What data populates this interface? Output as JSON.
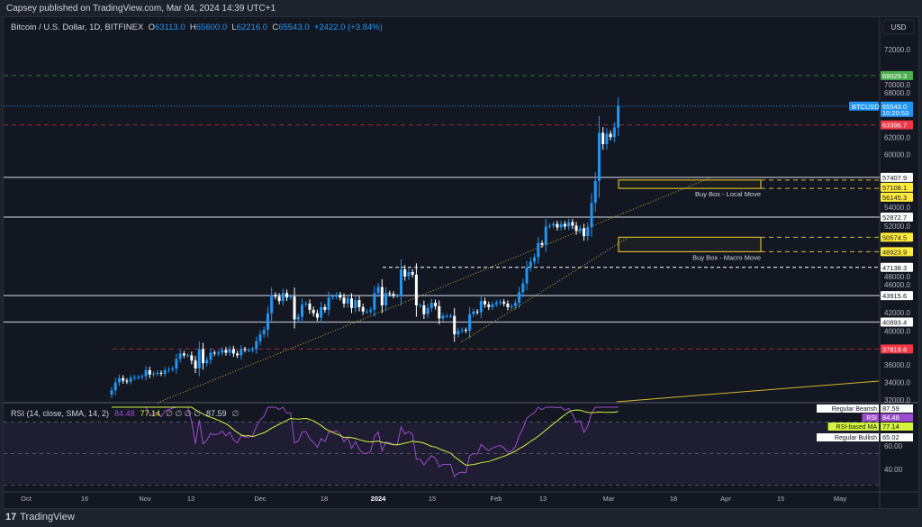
{
  "publisher": "Capsey published on TradingView.com, Mar 04, 2024 14:39 UTC+1",
  "legend": {
    "symbol": "Bitcoin / U.S. Dollar, 1D, BITFINEX",
    "o_label": "O",
    "o": "63113.0",
    "h_label": "H",
    "h": "65600.0",
    "l_label": "L",
    "l": "62216.0",
    "c_label": "C",
    "c": "65543.0",
    "change": "+2422.0 (+3.84%)"
  },
  "currency": "USD",
  "rsi_legend": {
    "label": "RSI (14, close, SMA, 14, 2)",
    "rsi": "84.48",
    "ma": "77.14",
    "na": "∅ ∅ ∅ ∅",
    "bearish": "87.59",
    "na2": "∅"
  },
  "footer": "TradingView",
  "chart_data": {
    "type": "candlestick",
    "symbol": "BTCUSD",
    "interval": "1D",
    "start_date": "2023-10-23",
    "ylim": [
      31500,
      73500
    ],
    "y_ticks": [
      "72000.0",
      "70000.0",
      "68000.0",
      "62000.0",
      "60000.0",
      "54000.0",
      "52000.0",
      "48000.0",
      "46000.0",
      "42000.0",
      "40000.0",
      "36000.0",
      "34000.0",
      "32000.0"
    ],
    "x_ticks": [
      "Oct",
      "16",
      "Nov",
      "13",
      "Dec",
      "18",
      "2024",
      "15",
      "Feb",
      "13",
      "Mar",
      "18",
      "Apr",
      "15",
      "May"
    ],
    "closes": [
      33100,
      34000,
      34500,
      34200,
      34100,
      34500,
      34600,
      34600,
      34700,
      35400,
      34900,
      35000,
      35100,
      35000,
      35400,
      35500,
      35600,
      36700,
      37300,
      37100,
      37100,
      36500,
      35600,
      37800,
      36200,
      36600,
      37400,
      37300,
      37400,
      37700,
      37400,
      37800,
      37300,
      37100,
      37800,
      37700,
      37700,
      37800,
      38700,
      39500,
      40000,
      41900,
      44000,
      43800,
      43300,
      44200,
      43700,
      43800,
      41200,
      41500,
      42900,
      43000,
      42300,
      41900,
      41400,
      42600,
      42300,
      43700,
      43800,
      44000,
      43700,
      43000,
      43600,
      42500,
      43400,
      42600,
      42100,
      42100,
      42300,
      44200,
      44900,
      42800,
      44200,
      44100,
      43900,
      43900,
      46900,
      46100,
      46600,
      46300,
      42800,
      42800,
      41800,
      42500,
      43100,
      42700,
      41300,
      41600,
      41600,
      41600,
      39500,
      39900,
      40000,
      39900,
      41800,
      42100,
      42000,
      43300,
      42900,
      42600,
      42900,
      43100,
      43200,
      43000,
      42600,
      42700,
      43100,
      44300,
      45300,
      47100,
      47800,
      48300,
      49900,
      49700,
      51800,
      51900,
      52100,
      51700,
      52100,
      51800,
      52300,
      51900,
      51300,
      51600,
      50700,
      51700,
      54500,
      57000,
      62500,
      61200,
      62400,
      62000,
      63100,
      65543
    ],
    "levels": [
      {
        "price": 69029.3,
        "label": "69029.3",
        "color": "#4caf50",
        "style": "dashed"
      },
      {
        "price": 65543.0,
        "label": "65543.0",
        "sub": "10:20:53",
        "tag": "BTCUSD",
        "color": "#2196f3",
        "style": "dotted"
      },
      {
        "price": 63396.7,
        "label": "63396.7",
        "color": "#f23645",
        "style": "dashed"
      },
      {
        "price": 57407.9,
        "label": "57407.9",
        "color": "#ffffff",
        "style": "solid"
      },
      {
        "price": 57108.1,
        "label": "57108.1",
        "color": "#ffeb3b",
        "style": "yellow"
      },
      {
        "price": 56145.3,
        "label": "56145.3",
        "color": "#ffeb3b",
        "style": "yellow"
      },
      {
        "price": 52872.7,
        "label": "52872.7",
        "color": "#ffffff",
        "style": "solid"
      },
      {
        "price": 50574.5,
        "label": "50574.5",
        "color": "#ffeb3b",
        "style": "yellow"
      },
      {
        "price": 48923.9,
        "label": "48923.9",
        "color": "#ffeb3b",
        "style": "yellow"
      },
      {
        "price": 47138.3,
        "label": "47138.3",
        "color": "#ffffff",
        "style": "whitedash"
      },
      {
        "price": 43915.6,
        "label": "43915.6",
        "color": "#ffffff",
        "style": "solid"
      },
      {
        "price": 40893.4,
        "label": "40893.4",
        "color": "#ffffff",
        "style": "solid"
      },
      {
        "price": 37819.6,
        "label": "37819.6",
        "color": "#f23645",
        "style": "dashed"
      }
    ],
    "boxes": [
      {
        "label": "Buy Box - Local Move",
        "low": 56145.3,
        "high": 57108.1
      },
      {
        "label": "Buy Box - Macro Move",
        "low": 48923.9,
        "high": 50574.5
      }
    ],
    "rsi": {
      "y_ticks": [
        "60.00",
        "40.00"
      ],
      "labels": [
        {
          "name": "Regular Bearish",
          "value": "87.59",
          "bg": "#ffffff",
          "fg": "#131722"
        },
        {
          "name": "RSI",
          "value": "84.48",
          "bg": "#9c4dcc",
          "fg": "#ffffff"
        },
        {
          "name": "RSI-based MA",
          "value": "77.14",
          "bg": "#d4f53c",
          "fg": "#131722"
        },
        {
          "name": "Regular Bullish",
          "value": "65.02",
          "bg": "#ffffff",
          "fg": "#131722"
        }
      ]
    }
  }
}
